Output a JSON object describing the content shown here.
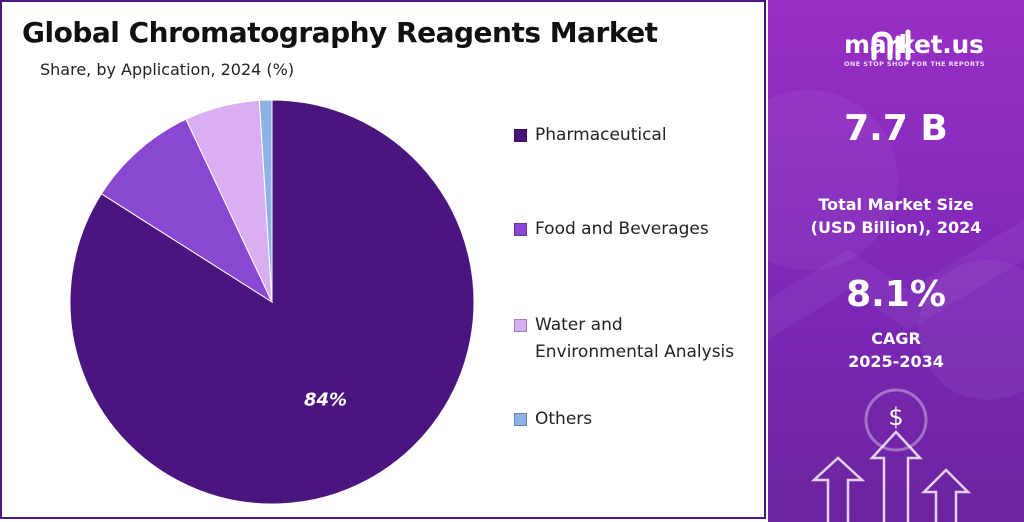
{
  "title": "Global Chromatography Reagents Market",
  "subtitle": "Share, by Application, 2024 (%)",
  "chart_data": {
    "type": "pie",
    "title": "Global Chromatography Reagents Market",
    "subtitle": "Share, by Application, 2024 (%)",
    "categories": [
      "Pharmaceutical",
      "Food and Beverages",
      "Water and Environmental Analysis",
      "Others"
    ],
    "values": [
      84,
      9,
      6,
      1
    ],
    "colors": [
      "#4b1580",
      "#8a48d2",
      "#d9aef2",
      "#8fb2e6"
    ],
    "data_labels": [
      "84%",
      "",
      "",
      ""
    ],
    "legend_position": "right"
  },
  "legend": {
    "items": [
      {
        "lines": [
          "Pharmaceutical"
        ],
        "color": "#4b1580"
      },
      {
        "lines": [
          "Food and Beverages"
        ],
        "color": "#8a48d2"
      },
      {
        "lines": [
          "Water and",
          "Environmental Analysis"
        ],
        "color": "#d9aef2"
      },
      {
        "lines": [
          "Others"
        ],
        "color": "#8fb2e6"
      }
    ]
  },
  "sidebar": {
    "brand_name": "market.us",
    "brand_tagline": "ONE STOP SHOP FOR THE REPORTS",
    "market_size_value": "7.7 B",
    "market_size_label_1": "Total Market Size",
    "market_size_label_2": "(USD Billion), 2024",
    "cagr_value": "8.1%",
    "cagr_label_1": "CAGR",
    "cagr_label_2": "2025-2034",
    "dollar_symbol": "$"
  }
}
